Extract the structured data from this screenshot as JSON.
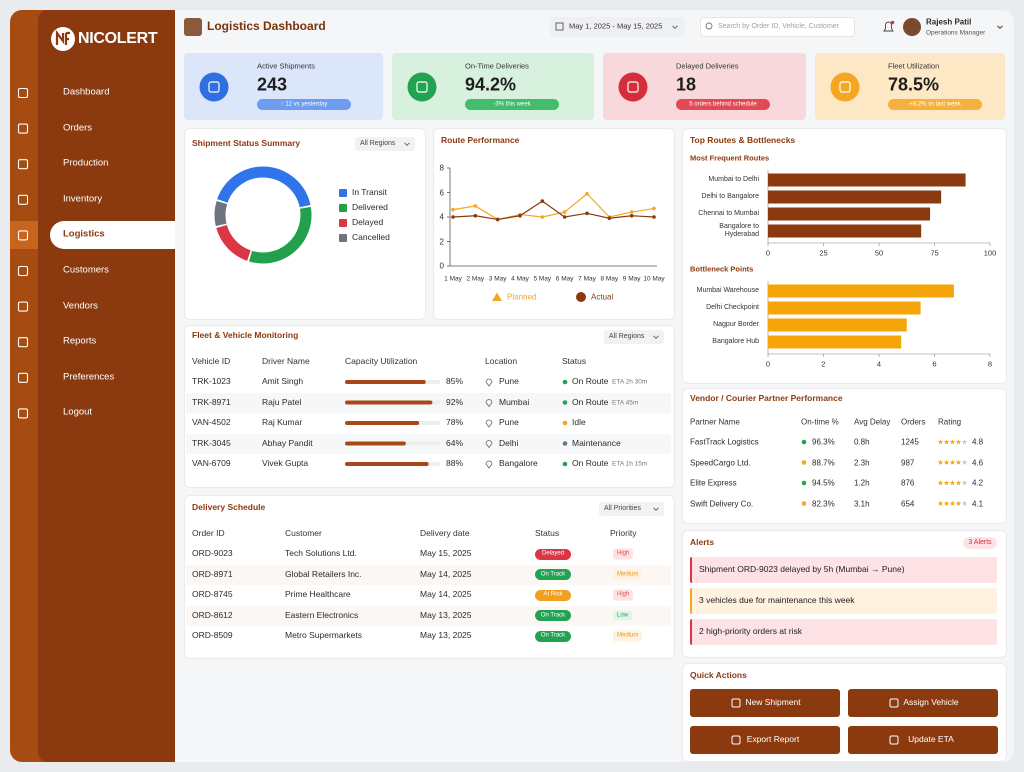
{
  "brand": "NICOLERT",
  "nav": [
    "Dashboard",
    "Orders",
    "Production",
    "Inventory",
    "Logistics",
    "Customers",
    "Vendors",
    "Reports",
    "Preferences",
    "Logout"
  ],
  "active_nav": 4,
  "header": {
    "title": "Logistics Dashboard",
    "date_range": "May 1, 2025 - May 15, 2025",
    "search_placeholder": "Search by Order ID, Vehicle, Customer",
    "user_name": "Rajesh Patil",
    "user_role": "Operations Manager"
  },
  "kpis": [
    {
      "label": "Active Shipments",
      "value": "243",
      "note": "↑ 12 vs yesterday",
      "bg": "#dbe6fb",
      "accent": "#2f6fe0",
      "pill": "#6d9cf0"
    },
    {
      "label": "On-Time Deliveries",
      "value": "94.2%",
      "note": "-3% this week",
      "bg": "#d8f1df",
      "accent": "#22a352",
      "pill": "#43bd6c"
    },
    {
      "label": "Delayed Deliveries",
      "value": "18",
      "note": "5 orders behind schedule",
      "bg": "#f8d8db",
      "accent": "#d42e3a",
      "pill": "#e24b55"
    },
    {
      "label": "Fleet Utilization",
      "value": "78.5%",
      "note": "+8.2% vs last week",
      "bg": "#fde8c6",
      "accent": "#f5a623",
      "pill": "#f5b13d"
    }
  ],
  "chart_data": [
    {
      "type": "donut",
      "title": "Shipment Status Summary",
      "filter": "All Regions",
      "categories": [
        "In Transit",
        "Delivered",
        "Delayed",
        "Cancelled"
      ],
      "values": [
        42,
        33,
        16,
        9
      ],
      "colors": [
        "#2f74e8",
        "#22a04b",
        "#dc3545",
        "#6c757d"
      ]
    },
    {
      "type": "line",
      "title": "Route Performance",
      "categories": [
        "1 May",
        "2 May",
        "3 May",
        "4 May",
        "5 May",
        "6 May",
        "7 May",
        "8 May",
        "9 May",
        "10 May"
      ],
      "series": [
        {
          "name": "Planned",
          "color": "#f5a623",
          "marker": "triangle",
          "values": [
            4.6,
            4.9,
            3.8,
            4.2,
            4.0,
            4.4,
            5.9,
            4.0,
            4.4,
            4.7
          ]
        },
        {
          "name": "Actual",
          "color": "#8b3a0f",
          "marker": "circle",
          "values": [
            4.0,
            4.1,
            3.8,
            4.1,
            5.3,
            4.0,
            4.3,
            3.9,
            4.1,
            4.0
          ]
        }
      ],
      "ylim": [
        0,
        8
      ],
      "yticks": [
        0,
        2,
        4,
        6,
        8
      ]
    },
    {
      "type": "hbar",
      "title": "Top Routes & Bottlenecks",
      "subtitle": "Most Frequent Routes",
      "categories": [
        "Mumbai to Delhi",
        "Delhi to Bangalore",
        "Chennai to Mumbai",
        "Bangalore to Hyderabad"
      ],
      "values": [
        89,
        78,
        73,
        69
      ],
      "color": "#8b3a0f",
      "xlim": [
        0,
        100
      ],
      "xticks": [
        0,
        25,
        50,
        75,
        100
      ]
    },
    {
      "type": "hbar",
      "subtitle": "Bottleneck Points",
      "categories": [
        "Mumbai Warehouse",
        "Delhi Checkpoint",
        "Nagpur Border",
        "Bangalore Hub"
      ],
      "values": [
        6.7,
        5.5,
        5.0,
        4.8
      ],
      "color": "#f5a50a",
      "xlim": [
        0,
        8
      ],
      "xticks": [
        0,
        2,
        4,
        6,
        8
      ]
    }
  ],
  "fleet": {
    "title": "Fleet & Vehicle Monitoring",
    "filter": "All Regions",
    "columns": [
      "Vehicle ID",
      "Driver Name",
      "Capacity Utilization",
      "Location",
      "Status"
    ],
    "rows": [
      {
        "id": "TRK-1023",
        "driver": "Amit Singh",
        "capacity": 85,
        "capacity_label": "85%",
        "location": "Pune",
        "status": "On Route",
        "eta": "ETA 2h 30m",
        "dot": "#22a352"
      },
      {
        "id": "TRK-8971",
        "driver": "Raju Patel",
        "capacity": 92,
        "capacity_label": "92%",
        "location": "Mumbai",
        "status": "On Route",
        "eta": "ETA 45m",
        "dot": "#22a352"
      },
      {
        "id": "VAN-4502",
        "driver": "Raj Kumar",
        "capacity": 78,
        "capacity_label": "78%",
        "location": "Pune",
        "status": "Idle",
        "dot": "#f5a623"
      },
      {
        "id": "TRK-3045",
        "driver": "Abhay Pandit",
        "capacity": 64,
        "capacity_label": "64%",
        "location": "Delhi",
        "status": "Maintenance",
        "dot": "#6c757d"
      },
      {
        "id": "VAN-6709",
        "driver": "Vivek Gupta",
        "capacity": 88,
        "capacity_label": "88%",
        "location": "Bangalore",
        "status": "On Route",
        "eta": "ETA 1h 15m",
        "dot": "#22a352"
      }
    ]
  },
  "delivery": {
    "title": "Delivery Schedule",
    "filter": "All Priorities",
    "columns": [
      "Order ID",
      "Customer",
      "Delivery date",
      "Status",
      "Priority"
    ],
    "rows": [
      {
        "id": "ORD-9023",
        "customer": "Tech Solutions Ltd.",
        "date": "May 15, 2025",
        "status": "Delayed",
        "status_color": "#dc3545",
        "priority": "High",
        "priority_bg": "#fde2e4",
        "priority_fg": "#d9534f"
      },
      {
        "id": "ORD-8971",
        "customer": "Global Retailers Inc.",
        "date": "May 14, 2025",
        "status": "On Track",
        "status_color": "#22a352",
        "priority": "Medium",
        "priority_bg": "#fff1dc",
        "priority_fg": "#e89a2c"
      },
      {
        "id": "ORD-8745",
        "customer": "Prime Healthcare",
        "date": "May 14, 2025",
        "status": "At Risk",
        "status_color": "#f0a01e",
        "priority": "High",
        "priority_bg": "#fde2e4",
        "priority_fg": "#d9534f"
      },
      {
        "id": "ORD-8612",
        "customer": "Eastern Electronics",
        "date": "May 13, 2025",
        "status": "On Track",
        "status_color": "#22a352",
        "priority": "Low",
        "priority_bg": "#e0f5e6",
        "priority_fg": "#2e9d57"
      },
      {
        "id": "ORD-8509",
        "customer": "Metro Supermarkets",
        "date": "May 13, 2025",
        "status": "On Track",
        "status_color": "#22a352",
        "priority": "Medium",
        "priority_bg": "#fff1dc",
        "priority_fg": "#e89a2c"
      }
    ]
  },
  "vendors": {
    "title": "Vendor / Courier Partner Performance",
    "columns": [
      "Partner Name",
      "On-time %",
      "Avg Delay",
      "Orders",
      "Rating"
    ],
    "rows": [
      {
        "name": "FastTrack Logistics",
        "on_time": "96.3%",
        "delay": "0.8h",
        "orders": "1245",
        "rating": "4.8",
        "dot": "#22a352"
      },
      {
        "name": "SpeedCargo Ltd.",
        "on_time": "88.7%",
        "delay": "2.3h",
        "orders": "987",
        "rating": "4.6",
        "dot": "#f5a623"
      },
      {
        "name": "Elite Express",
        "on_time": "94.5%",
        "delay": "1.2h",
        "orders": "876",
        "rating": "4.2",
        "dot": "#22a352"
      },
      {
        "name": "Swift Delivery Co.",
        "on_time": "82.3%",
        "delay": "3.1h",
        "orders": "654",
        "rating": "4.1",
        "dot": "#f5a623"
      }
    ]
  },
  "alerts": {
    "title": "Alerts",
    "count": "3 Alerts",
    "items": [
      {
        "text": "Shipment ORD-9023 delayed by 5h (Mumbai → Pune)",
        "bg": "#fde3e5",
        "border": "#dc3545"
      },
      {
        "text": "3 vehicles due for maintenance this week",
        "bg": "#fff2df",
        "border": "#f5a623"
      },
      {
        "text": "2 high-priority orders at risk",
        "bg": "#fde3e5",
        "border": "#dc3545"
      }
    ]
  },
  "quick_actions": {
    "title": "Quick Actions",
    "buttons": [
      "New Shipment",
      "Assign Vehicle",
      "Export Report",
      "Update ETA"
    ]
  }
}
